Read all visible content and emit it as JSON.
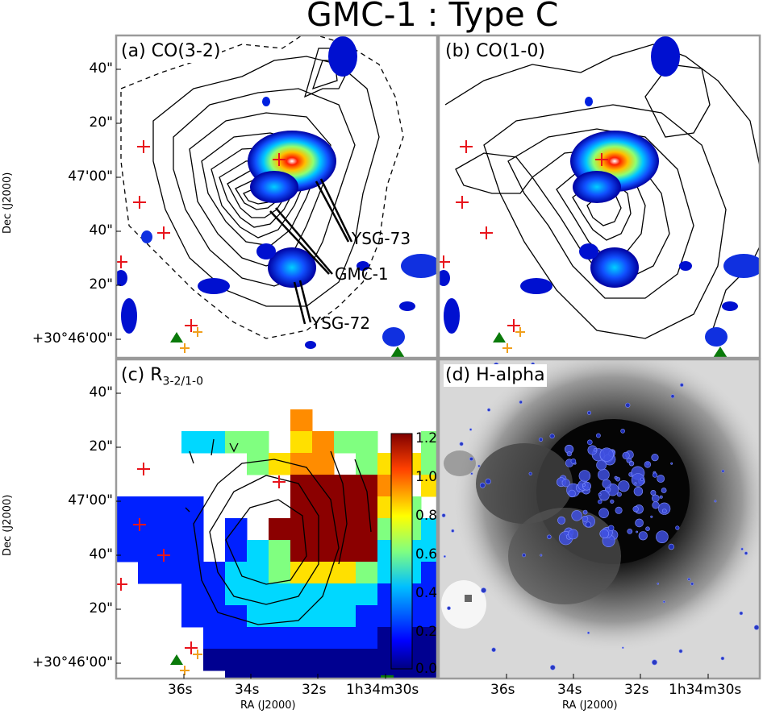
{
  "figure_title": "GMC-1 : Type C",
  "panels": {
    "a": {
      "label": "(a) CO(3-2)"
    },
    "b": {
      "label": "(b) CO(1-0)"
    },
    "c": {
      "label_main": "(c) R",
      "label_sub": "3-2/1-0"
    },
    "d": {
      "label": "(d) H-alpha"
    }
  },
  "dec_ticks": [
    "40\"",
    "20\"",
    "47'00\"",
    "40\"",
    "20\"",
    "+30°46'00\""
  ],
  "ra_ticks": [
    "36s",
    "34s",
    "32s",
    "1h34m30s"
  ],
  "dec_label": "Dec (J2000)",
  "ra_label": "RA (J2000)",
  "annotations": {
    "ysg73": "YSG-73",
    "gmc1": "GMC-1",
    "ysg72": "YSG-72"
  },
  "colorbar": {
    "ticks": [
      "1.2",
      "1.0",
      "0.8",
      "0.6",
      "0.4",
      "0.2",
      "0.0"
    ],
    "range": [
      0,
      1.2
    ]
  },
  "colors": {
    "cross_red": "#e8141c",
    "cross_orange": "#f0a01e",
    "triangle_green": "#0a7a0a",
    "panel_border": "#9a9a9a"
  }
}
